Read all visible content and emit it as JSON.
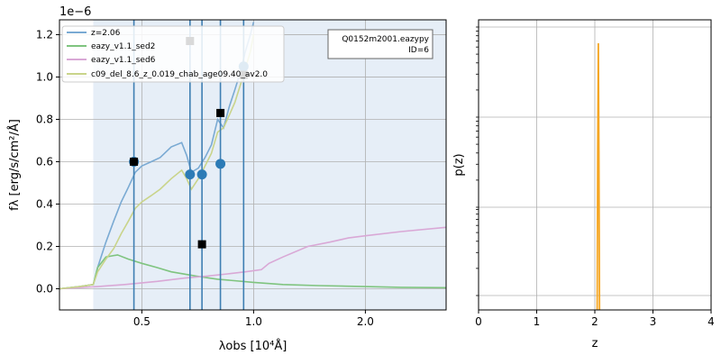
{
  "chart_data": [
    {
      "type": "line",
      "xlabel": "λobs [10⁴Å]",
      "ylabel": "fλ [erg/s/cm²/Å]",
      "offset_text": "1e−6",
      "x_scale": "log",
      "xlim": [
        0.3,
        3.3
      ],
      "ylim": [
        -0.1,
        1.27
      ],
      "x_ticks": [
        0.5,
        1.0,
        2.0
      ],
      "x_tick_labels": [
        "0.5",
        "1.0",
        "2.0"
      ],
      "y_ticks": [
        0.0,
        0.2,
        0.4,
        0.6,
        0.8,
        1.0,
        1.2
      ],
      "y_tick_labels": [
        "0.0",
        "0.2",
        "0.4",
        "0.6",
        "0.8",
        "1.0",
        "1.2"
      ],
      "grid": true,
      "shaded_range": [
        0.37,
        3.3
      ],
      "shade_color": "#e6eef7",
      "legend_position": "top-left",
      "annotation": [
        "Q0152m2001.eazypy",
        "ID=6"
      ],
      "filter_lines": [
        0.476,
        0.674,
        0.726,
        0.814,
        0.94
      ],
      "filter_line_color": "#3e7fb3",
      "series": [
        {
          "name": "z=2.06",
          "color": "#7aaad3",
          "x": [
            0.3,
            0.34,
            0.37,
            0.38,
            0.4,
            0.42,
            0.44,
            0.46,
            0.48,
            0.5,
            0.53,
            0.56,
            0.6,
            0.64,
            0.66,
            0.68,
            0.71,
            0.74,
            0.77,
            0.8,
            0.83,
            0.86,
            0.89,
            0.92,
            0.95,
            0.98,
            1.0
          ],
          "y": [
            0.0,
            0.01,
            0.02,
            0.1,
            0.22,
            0.32,
            0.41,
            0.48,
            0.55,
            0.58,
            0.6,
            0.62,
            0.67,
            0.69,
            0.63,
            0.55,
            0.57,
            0.62,
            0.68,
            0.8,
            0.76,
            0.86,
            0.94,
            1.02,
            1.12,
            1.2,
            1.26
          ]
        },
        {
          "name": "eazy_v1.1_sed2",
          "color": "#7fc47f",
          "x": [
            0.3,
            0.34,
            0.37,
            0.38,
            0.4,
            0.43,
            0.46,
            0.5,
            0.55,
            0.6,
            0.7,
            0.8,
            1.0,
            1.2,
            1.5,
            2.0,
            2.5,
            3.3
          ],
          "y": [
            0.0,
            0.01,
            0.02,
            0.1,
            0.15,
            0.16,
            0.14,
            0.12,
            0.1,
            0.08,
            0.06,
            0.045,
            0.03,
            0.02,
            0.015,
            0.01,
            0.007,
            0.005
          ]
        },
        {
          "name": "eazy_v1.1_sed6",
          "color": "#d9a8d6",
          "x": [
            0.3,
            0.38,
            0.45,
            0.55,
            0.65,
            0.75,
            0.85,
            0.95,
            1.05,
            1.1,
            1.2,
            1.4,
            1.6,
            1.8,
            2.0,
            2.5,
            3.3
          ],
          "y": [
            0.0,
            0.01,
            0.02,
            0.035,
            0.05,
            0.06,
            0.07,
            0.08,
            0.09,
            0.12,
            0.15,
            0.2,
            0.22,
            0.24,
            0.25,
            0.27,
            0.29
          ]
        },
        {
          "name": "c09_del_8.6_z_0.019_chab_age09.40_av2.0",
          "color": "#c9d48a",
          "x": [
            0.3,
            0.34,
            0.37,
            0.38,
            0.4,
            0.42,
            0.44,
            0.46,
            0.48,
            0.5,
            0.53,
            0.56,
            0.6,
            0.64,
            0.66,
            0.68,
            0.71,
            0.74,
            0.77,
            0.8,
            0.83,
            0.86,
            0.89,
            0.92,
            0.95,
            0.98,
            1.0
          ],
          "y": [
            0.0,
            0.01,
            0.02,
            0.08,
            0.14,
            0.19,
            0.26,
            0.32,
            0.38,
            0.41,
            0.44,
            0.47,
            0.52,
            0.56,
            0.52,
            0.47,
            0.52,
            0.58,
            0.64,
            0.74,
            0.76,
            0.82,
            0.88,
            0.96,
            1.04,
            1.12,
            1.2
          ]
        }
      ],
      "model_points": {
        "color": "#2c7bb6",
        "x": [
          0.476,
          0.674,
          0.726,
          0.814,
          0.94
        ],
        "y": [
          0.6,
          0.54,
          0.54,
          0.59,
          1.05
        ]
      },
      "observed_points": {
        "color": "#000000",
        "x": [
          0.476,
          0.674,
          0.726,
          0.814,
          0.94
        ],
        "y": [
          0.6,
          1.17,
          0.21,
          0.83,
          1.01
        ]
      }
    },
    {
      "type": "line",
      "xlabel": "z",
      "ylabel": "p(z)",
      "y_scale": "log",
      "xlim": [
        0,
        4
      ],
      "x_ticks": [
        0,
        1,
        2,
        3,
        4
      ],
      "x_tick_labels": [
        "0",
        "1",
        "2",
        "3",
        "4"
      ],
      "grid": true,
      "series": [
        {
          "color": "#f5a623",
          "x": [
            2.04,
            2.05,
            2.06,
            2.07,
            2.08
          ],
          "y": [
            0.0,
            0.6,
            1.0,
            0.6,
            0.0
          ]
        }
      ]
    }
  ]
}
